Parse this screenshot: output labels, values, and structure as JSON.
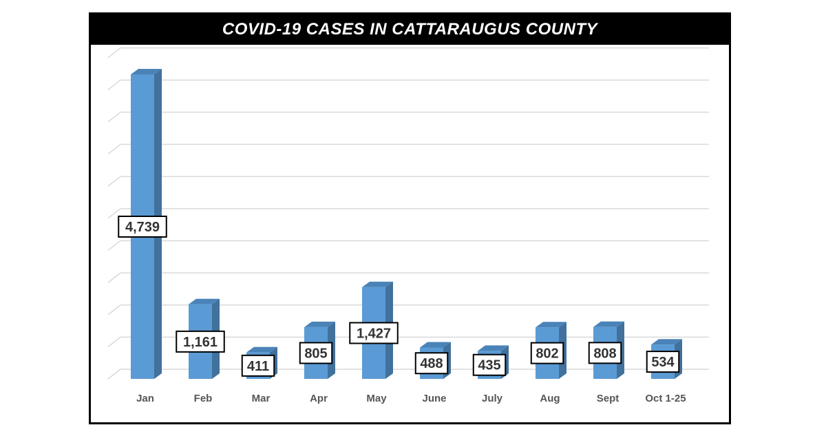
{
  "chart_data": {
    "type": "bar",
    "title": "COVID-19 CASES IN CATTARAUGUS COUNTY",
    "categories": [
      "Jan",
      "Feb",
      "Mar",
      "Apr",
      "May",
      "June",
      "July",
      "Aug",
      "Sept",
      "Oct 1-25"
    ],
    "values": [
      4739,
      1161,
      411,
      805,
      1427,
      488,
      435,
      802,
      808,
      534
    ],
    "data_labels": [
      "4,739",
      "1,161",
      "411",
      "805",
      "1,427",
      "488",
      "435",
      "802",
      "808",
      "534"
    ],
    "ylim": [
      0,
      5000
    ],
    "ytick_step": 500,
    "grid": true,
    "style": "3d-column",
    "colors": {
      "bar_front": "#5b9bd5",
      "bar_side": "#41719c",
      "bar_top": "#4a83b8",
      "grid": "#d9d9d9",
      "title_bg": "#000000",
      "title_text": "#ffffff"
    }
  }
}
